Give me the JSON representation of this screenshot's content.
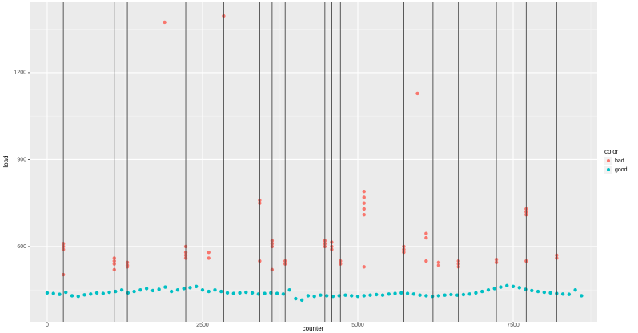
{
  "chart_data": {
    "type": "scatter",
    "x_label": "counter",
    "y_label": "load",
    "xlim": [
      -283,
      8853
    ],
    "ylim": [
      340,
      1443
    ],
    "xticks": [
      0,
      2500,
      5000,
      7500
    ],
    "yticks": [
      600,
      900,
      1200
    ],
    "grid": true,
    "legend_title": "color",
    "legend_position": "right",
    "vlines": [
      260,
      1080,
      1290,
      2230,
      2840,
      3420,
      3620,
      3830,
      4470,
      4580,
      4720,
      5740,
      6210,
      6620,
      7230,
      7710,
      8200
    ],
    "vline_color": "#333333",
    "series": [
      {
        "name": "bad",
        "color": "#F8766D",
        "x": [
          260,
          260,
          260,
          260,
          1080,
          1080,
          1080,
          1080,
          1290,
          1290,
          1290,
          1890,
          2230,
          2230,
          2230,
          2230,
          2600,
          2600,
          2840,
          3420,
          3420,
          3420,
          3620,
          3620,
          3620,
          3620,
          3830,
          3830,
          4470,
          4470,
          4470,
          4580,
          4580,
          4580,
          4720,
          4720,
          5100,
          5100,
          5100,
          5100,
          5100,
          5100,
          5740,
          5740,
          5740,
          5960,
          6100,
          6100,
          6100,
          6300,
          6300,
          6620,
          6620,
          6620,
          7230,
          7230,
          7710,
          7710,
          7710,
          7710,
          8200,
          8200
        ],
        "values": [
          610,
          600,
          590,
          503,
          560,
          550,
          540,
          520,
          545,
          535,
          530,
          1374,
          600,
          580,
          570,
          560,
          580,
          560,
          1396,
          760,
          750,
          550,
          620,
          610,
          600,
          520,
          550,
          540,
          620,
          610,
          600,
          615,
          600,
          590,
          550,
          540,
          790,
          770,
          750,
          730,
          710,
          530,
          600,
          590,
          580,
          1128,
          645,
          630,
          550,
          545,
          535,
          550,
          540,
          530,
          555,
          545,
          730,
          720,
          710,
          550,
          570,
          560
        ]
      },
      {
        "name": "good",
        "color": "#00BFC4",
        "x": [
          0,
          100,
          200,
          300,
          400,
          500,
          600,
          700,
          800,
          900,
          1000,
          1100,
          1200,
          1300,
          1400,
          1500,
          1600,
          1700,
          1800,
          1900,
          2000,
          2100,
          2200,
          2300,
          2400,
          2500,
          2600,
          2700,
          2800,
          2900,
          3000,
          3100,
          3200,
          3300,
          3400,
          3500,
          3600,
          3700,
          3800,
          3900,
          4000,
          4100,
          4200,
          4300,
          4400,
          4500,
          4600,
          4700,
          4800,
          4900,
          5000,
          5100,
          5200,
          5300,
          5400,
          5500,
          5600,
          5700,
          5800,
          5900,
          6000,
          6100,
          6200,
          6300,
          6400,
          6500,
          6600,
          6700,
          6800,
          6900,
          7000,
          7100,
          7200,
          7300,
          7400,
          7500,
          7600,
          7700,
          7800,
          7900,
          8000,
          8100,
          8200,
          8300,
          8400,
          8500,
          8600
        ],
        "values": [
          440,
          438,
          435,
          442,
          430,
          428,
          433,
          436,
          440,
          438,
          442,
          445,
          450,
          440,
          445,
          450,
          455,
          448,
          452,
          460,
          445,
          450,
          455,
          458,
          462,
          450,
          445,
          450,
          445,
          440,
          438,
          440,
          442,
          440,
          436,
          438,
          440,
          438,
          436,
          450,
          420,
          415,
          430,
          428,
          432,
          430,
          428,
          430,
          432,
          430,
          428,
          430,
          432,
          434,
          432,
          436,
          438,
          440,
          438,
          436,
          432,
          430,
          428,
          430,
          432,
          434,
          432,
          434,
          436,
          440,
          445,
          450,
          455,
          460,
          465,
          462,
          458,
          452,
          448,
          445,
          442,
          440,
          438,
          436,
          435,
          450,
          430
        ]
      }
    ]
  }
}
